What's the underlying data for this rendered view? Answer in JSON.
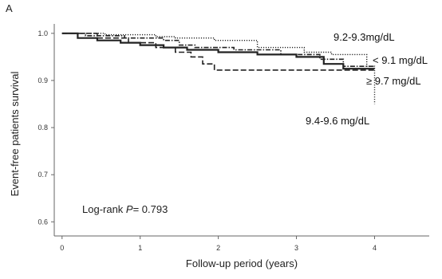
{
  "chart_data": {
    "type": "line",
    "subtype": "kaplan-meier",
    "panel_label": "A",
    "xlabel": "Follow-up period (years)",
    "ylabel": "Event-free patients survival",
    "xlim": [
      -0.1,
      4.7
    ],
    "ylim": [
      0.57,
      1.02
    ],
    "x_ticks": [
      0,
      1,
      2,
      3,
      4
    ],
    "x_tick_labels": [
      "0",
      "1",
      "2",
      "3",
      "4"
    ],
    "y_ticks": [
      0.6,
      0.7,
      0.8,
      0.9,
      1.0
    ],
    "y_tick_labels": [
      "0.6",
      "0.7",
      "0.8",
      "0.9",
      "1.0"
    ],
    "grid": false,
    "annotation": {
      "prefix": "Log-rank ",
      "italic": "P",
      "suffix": "= 0.793"
    },
    "series": [
      {
        "name": "9.2-9.3mg/dL",
        "style": "dotted",
        "color": "#222222",
        "x": [
          0,
          0.55,
          0.55,
          1.2,
          1.2,
          1.45,
          1.45,
          1.95,
          1.95,
          2.5,
          2.5,
          3.1,
          3.1,
          3.45,
          3.45,
          3.9,
          3.9,
          4.0,
          4.0
        ],
        "y": [
          1.0,
          1.0,
          0.997,
          0.997,
          0.993,
          0.993,
          0.99,
          0.99,
          0.985,
          0.985,
          0.97,
          0.97,
          0.96,
          0.96,
          0.955,
          0.955,
          0.93,
          0.93,
          0.85
        ]
      },
      {
        "name": "< 9.1 mg/dL",
        "style": "dashdot",
        "color": "#222222",
        "x": [
          0,
          0.3,
          0.3,
          0.8,
          0.8,
          1.3,
          1.3,
          1.5,
          1.5,
          1.7,
          1.7,
          2.2,
          2.2,
          2.8,
          2.8,
          3.3,
          3.3,
          3.6,
          3.6,
          4.0
        ],
        "y": [
          1.0,
          1.0,
          0.995,
          0.995,
          0.99,
          0.99,
          0.985,
          0.985,
          0.975,
          0.975,
          0.97,
          0.97,
          0.965,
          0.965,
          0.955,
          0.955,
          0.945,
          0.945,
          0.93,
          0.93
        ]
      },
      {
        "name": "≥ 9.7 mg/dL",
        "style": "solid",
        "color": "#222222",
        "x": [
          0,
          0.2,
          0.2,
          0.45,
          0.45,
          0.75,
          0.75,
          1.0,
          1.0,
          1.3,
          1.3,
          1.6,
          1.6,
          2.0,
          2.0,
          2.5,
          2.5,
          3.0,
          3.0,
          3.35,
          3.35,
          3.6,
          3.6,
          4.0
        ],
        "y": [
          1.0,
          1.0,
          0.99,
          0.99,
          0.985,
          0.985,
          0.98,
          0.98,
          0.975,
          0.975,
          0.97,
          0.97,
          0.965,
          0.965,
          0.96,
          0.96,
          0.955,
          0.955,
          0.95,
          0.95,
          0.935,
          0.935,
          0.925,
          0.925
        ]
      },
      {
        "name": "9.4-9.6 mg/dL",
        "style": "longdash",
        "color": "#222222",
        "x": [
          0,
          0.45,
          0.45,
          0.85,
          0.85,
          1.2,
          1.2,
          1.45,
          1.45,
          1.65,
          1.65,
          1.8,
          1.8,
          1.95,
          1.95,
          2.6,
          2.6,
          4.0
        ],
        "y": [
          1.0,
          1.0,
          0.99,
          0.99,
          0.98,
          0.98,
          0.97,
          0.97,
          0.96,
          0.96,
          0.95,
          0.95,
          0.935,
          0.935,
          0.922,
          0.922,
          0.922,
          0.922
        ]
      }
    ]
  }
}
